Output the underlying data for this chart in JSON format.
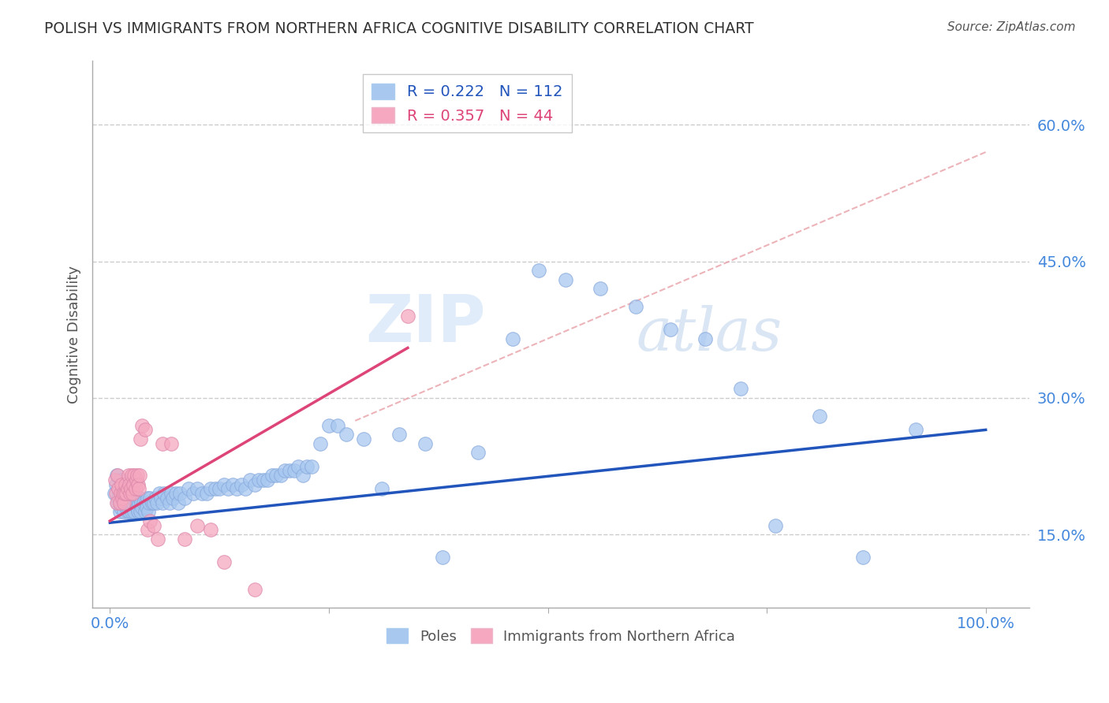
{
  "title": "POLISH VS IMMIGRANTS FROM NORTHERN AFRICA COGNITIVE DISABILITY CORRELATION CHART",
  "source": "Source: ZipAtlas.com",
  "ylabel": "Cognitive Disability",
  "watermark": "ZIPatlas",
  "legend1_label": "R = 0.222   N = 112",
  "legend2_label": "R = 0.357   N = 44",
  "legend1_color": "#a8c8f0",
  "legend2_color": "#f5a8c0",
  "blue_line_color": "#2255bb",
  "pink_line_color": "#dd4477",
  "dashed_line_color": "#e8a0a8",
  "grid_color": "#cccccc",
  "ytick_color": "#4488dd",
  "xtick_color": "#4488dd",
  "title_color": "#333333",
  "ylabel_color": "#555555",
  "source_color": "#555555",
  "yticks": [
    0.15,
    0.3,
    0.45,
    0.6
  ],
  "ytick_labels": [
    "15.0%",
    "30.0%",
    "45.0%",
    "60.0%"
  ],
  "xticks": [
    0.0,
    0.25,
    0.5,
    0.75,
    1.0
  ],
  "xtick_labels": [
    "0.0%",
    "",
    "",
    "",
    "100.0%"
  ],
  "ylim": [
    0.07,
    0.67
  ],
  "xlim": [
    -0.02,
    1.05
  ],
  "poles_x": [
    0.005,
    0.007,
    0.008,
    0.009,
    0.01,
    0.01,
    0.011,
    0.012,
    0.012,
    0.013,
    0.014,
    0.015,
    0.016,
    0.017,
    0.018,
    0.018,
    0.019,
    0.02,
    0.02,
    0.021,
    0.022,
    0.022,
    0.023,
    0.024,
    0.025,
    0.025,
    0.026,
    0.027,
    0.028,
    0.03,
    0.031,
    0.032,
    0.033,
    0.034,
    0.035,
    0.036,
    0.037,
    0.038,
    0.04,
    0.041,
    0.042,
    0.043,
    0.044,
    0.045,
    0.046,
    0.048,
    0.05,
    0.052,
    0.054,
    0.056,
    0.058,
    0.06,
    0.062,
    0.065,
    0.068,
    0.07,
    0.072,
    0.075,
    0.078,
    0.08,
    0.085,
    0.09,
    0.095,
    0.1,
    0.105,
    0.11,
    0.115,
    0.12,
    0.125,
    0.13,
    0.135,
    0.14,
    0.145,
    0.15,
    0.155,
    0.16,
    0.165,
    0.17,
    0.175,
    0.18,
    0.185,
    0.19,
    0.195,
    0.2,
    0.205,
    0.21,
    0.215,
    0.22,
    0.225,
    0.23,
    0.24,
    0.25,
    0.26,
    0.27,
    0.29,
    0.31,
    0.33,
    0.36,
    0.38,
    0.42,
    0.46,
    0.49,
    0.52,
    0.56,
    0.6,
    0.64,
    0.68,
    0.72,
    0.76,
    0.81,
    0.86,
    0.92
  ],
  "poles_y": [
    0.195,
    0.205,
    0.215,
    0.185,
    0.2,
    0.19,
    0.175,
    0.18,
    0.21,
    0.195,
    0.185,
    0.2,
    0.175,
    0.185,
    0.195,
    0.205,
    0.18,
    0.175,
    0.195,
    0.185,
    0.175,
    0.195,
    0.185,
    0.18,
    0.19,
    0.175,
    0.185,
    0.19,
    0.175,
    0.185,
    0.18,
    0.175,
    0.185,
    0.19,
    0.175,
    0.185,
    0.18,
    0.185,
    0.175,
    0.185,
    0.18,
    0.19,
    0.175,
    0.185,
    0.19,
    0.185,
    0.185,
    0.19,
    0.185,
    0.195,
    0.19,
    0.185,
    0.195,
    0.19,
    0.185,
    0.195,
    0.19,
    0.195,
    0.185,
    0.195,
    0.19,
    0.2,
    0.195,
    0.2,
    0.195,
    0.195,
    0.2,
    0.2,
    0.2,
    0.205,
    0.2,
    0.205,
    0.2,
    0.205,
    0.2,
    0.21,
    0.205,
    0.21,
    0.21,
    0.21,
    0.215,
    0.215,
    0.215,
    0.22,
    0.22,
    0.22,
    0.225,
    0.215,
    0.225,
    0.225,
    0.25,
    0.27,
    0.27,
    0.26,
    0.255,
    0.2,
    0.26,
    0.25,
    0.125,
    0.24,
    0.365,
    0.44,
    0.43,
    0.42,
    0.4,
    0.375,
    0.365,
    0.31,
    0.16,
    0.28,
    0.125,
    0.265
  ],
  "immigrants_x": [
    0.006,
    0.007,
    0.008,
    0.009,
    0.01,
    0.011,
    0.012,
    0.013,
    0.014,
    0.015,
    0.016,
    0.017,
    0.018,
    0.019,
    0.02,
    0.021,
    0.022,
    0.023,
    0.024,
    0.025,
    0.026,
    0.027,
    0.028,
    0.029,
    0.03,
    0.031,
    0.032,
    0.033,
    0.034,
    0.035,
    0.037,
    0.04,
    0.043,
    0.046,
    0.05,
    0.055,
    0.06,
    0.07,
    0.085,
    0.1,
    0.115,
    0.13,
    0.165,
    0.34
  ],
  "immigrants_y": [
    0.21,
    0.195,
    0.185,
    0.215,
    0.2,
    0.185,
    0.195,
    0.205,
    0.19,
    0.195,
    0.185,
    0.195,
    0.205,
    0.195,
    0.2,
    0.215,
    0.205,
    0.195,
    0.2,
    0.215,
    0.195,
    0.205,
    0.215,
    0.2,
    0.21,
    0.215,
    0.205,
    0.2,
    0.215,
    0.255,
    0.27,
    0.265,
    0.155,
    0.165,
    0.16,
    0.145,
    0.25,
    0.25,
    0.145,
    0.16,
    0.155,
    0.12,
    0.09,
    0.39
  ],
  "blue_line_x": [
    0.0,
    1.0
  ],
  "blue_line_y": [
    0.163,
    0.265
  ],
  "pink_line_x": [
    0.0,
    0.34
  ],
  "pink_line_y": [
    0.165,
    0.355
  ],
  "dashed_line_x": [
    0.28,
    1.0
  ],
  "dashed_line_y": [
    0.275,
    0.57
  ]
}
